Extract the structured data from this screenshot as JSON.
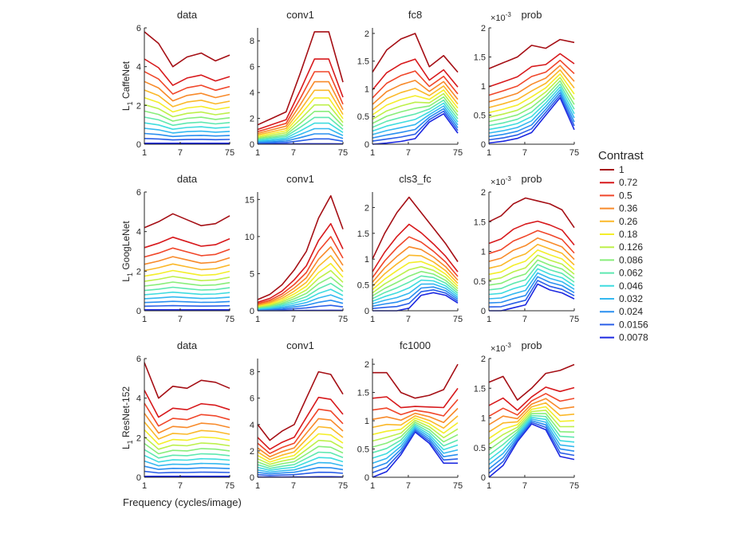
{
  "figure": {
    "xlabel": "Frequency (cycles/image)",
    "legend_title": "Contrast",
    "row_labels": [
      "CaffeNet",
      "GoogLeNet",
      "ResNet-152"
    ],
    "row_label_prefix": "L",
    "row_label_sub": "1",
    "exponent_label": "×10",
    "exponent_value": "-3",
    "x_tick_labels": [
      "1",
      "7",
      "75"
    ]
  },
  "colors": [
    "#a50f15",
    "#d7191c",
    "#f0462a",
    "#f88a2a",
    "#fbb829",
    "#f4ee2a",
    "#bdf04a",
    "#88ee7a",
    "#5ee8b0",
    "#3fdcdf",
    "#34b8f0",
    "#2a8ff0",
    "#2a5fe8",
    "#1c28e0"
  ],
  "chart_data": {
    "type": "line",
    "x": [
      1,
      2,
      3,
      5,
      7,
      10,
      15,
      25,
      40,
      75
    ],
    "legend": [
      "1",
      "0.72",
      "0.5",
      "0.36",
      "0.26",
      "0.18",
      "0.126",
      "0.086",
      "0.062",
      "0.046",
      "0.032",
      "0.024",
      "0.0156",
      "0.0078"
    ],
    "panels": [
      {
        "row": 0,
        "col": 0,
        "title": "data",
        "ylim": [
          0,
          6
        ],
        "yticks": [
          0,
          2,
          4,
          6
        ],
        "first": [
          5.8,
          5.2,
          4.0,
          4.5,
          4.7,
          4.3,
          4.6
        ],
        "last": [
          0.05,
          0.05,
          0.05,
          0.05,
          0.05,
          0.05,
          0.05
        ],
        "lowIsRed": false
      },
      {
        "row": 0,
        "col": 1,
        "title": "conv1",
        "ylim": [
          0,
          9
        ],
        "yticks": [
          0,
          2,
          4,
          6,
          8
        ],
        "first": [
          1.5,
          2.0,
          2.5,
          5.5,
          8.7,
          8.7,
          4.8
        ],
        "last": [
          0.02,
          0.02,
          0.03,
          0.03,
          0.04,
          0.04,
          0.03
        ],
        "lowIsRed": false
      },
      {
        "row": 0,
        "col": 2,
        "title": "fc8",
        "ylim": [
          0,
          2.1
        ],
        "yticks": [
          0,
          0.5,
          1,
          1.5,
          2
        ],
        "first": [
          1.3,
          1.7,
          1.9,
          2.0,
          1.4,
          1.6,
          1.3
        ],
        "last": [
          0.0,
          0.02,
          0.05,
          0.1,
          0.4,
          0.55,
          0.2
        ],
        "lowIsRed": false
      },
      {
        "row": 0,
        "col": 3,
        "title": "prob",
        "ylim": [
          0,
          2
        ],
        "yticks": [
          0,
          0.5,
          1,
          1.5,
          2
        ],
        "first": [
          1.3,
          1.4,
          1.5,
          1.7,
          1.65,
          1.8,
          1.75
        ],
        "last": [
          0.02,
          0.05,
          0.1,
          0.2,
          0.5,
          0.8,
          0.25
        ],
        "exp": true,
        "lowIsRed": false
      },
      {
        "row": 1,
        "col": 0,
        "title": "data",
        "ylim": [
          0,
          6
        ],
        "yticks": [
          0,
          2,
          4,
          6
        ],
        "first": [
          4.2,
          4.5,
          4.9,
          4.6,
          4.3,
          4.4,
          4.8
        ],
        "last": [
          0.05,
          0.05,
          0.05,
          0.05,
          0.05,
          0.05,
          0.05
        ],
        "lowIsRed": false
      },
      {
        "row": 1,
        "col": 1,
        "title": "conv1",
        "ylim": [
          0,
          16
        ],
        "yticks": [
          0,
          5,
          10,
          15
        ],
        "first": [
          1.5,
          2.2,
          3.5,
          5.5,
          8.0,
          12.5,
          15.5,
          11.0
        ],
        "last": [
          0.02,
          0.02,
          0.02,
          0.03,
          0.04,
          0.05,
          0.06,
          0.04
        ],
        "lowIsRed": false
      },
      {
        "row": 1,
        "col": 2,
        "title": "cls3_fc",
        "ylim": [
          0,
          2.3
        ],
        "yticks": [
          0,
          0.5,
          1,
          1.5,
          2
        ],
        "first": [
          1.0,
          1.5,
          1.9,
          2.2,
          1.9,
          1.6,
          1.3,
          0.95
        ],
        "last": [
          0.0,
          0.0,
          0.0,
          0.05,
          0.3,
          0.35,
          0.3,
          0.15
        ],
        "lowIsRed": false
      },
      {
        "row": 1,
        "col": 3,
        "title": "prob",
        "ylim": [
          0,
          2
        ],
        "yticks": [
          0,
          0.5,
          1,
          1.5,
          2
        ],
        "first": [
          1.5,
          1.6,
          1.8,
          1.9,
          1.85,
          1.8,
          1.7,
          1.4
        ],
        "last": [
          0.0,
          0.0,
          0.05,
          0.1,
          0.45,
          0.35,
          0.3,
          0.2
        ],
        "exp": true,
        "lowIsRed": false
      },
      {
        "row": 2,
        "col": 0,
        "title": "data",
        "ylim": [
          0,
          6
        ],
        "yticks": [
          0,
          2,
          4,
          6
        ],
        "first": [
          5.8,
          4.0,
          4.6,
          4.5,
          4.9,
          4.8,
          4.5
        ],
        "last": [
          0.05,
          0.05,
          0.05,
          0.05,
          0.05,
          0.05,
          0.05
        ],
        "lowIsRed": false
      },
      {
        "row": 2,
        "col": 1,
        "title": "conv1",
        "ylim": [
          0,
          9
        ],
        "yticks": [
          0,
          2,
          4,
          6,
          8
        ],
        "first": [
          4.0,
          2.8,
          3.5,
          4.0,
          6.0,
          8.0,
          7.8,
          6.3
        ],
        "last": [
          0.02,
          0.02,
          0.02,
          0.03,
          0.03,
          0.04,
          0.04,
          0.03
        ],
        "lowIsRed": false
      },
      {
        "row": 2,
        "col": 2,
        "title": "fc1000",
        "ylim": [
          0,
          2.1
        ],
        "yticks": [
          0,
          0.5,
          1,
          1.5,
          2
        ],
        "first": [
          1.85,
          1.85,
          1.5,
          1.4,
          1.45,
          1.55,
          2.0
        ],
        "last": [
          0.0,
          0.1,
          0.4,
          0.8,
          0.6,
          0.25,
          0.25
        ],
        "lowIsRed": false
      },
      {
        "row": 2,
        "col": 3,
        "title": "prob",
        "ylim": [
          0,
          2
        ],
        "yticks": [
          0,
          0.5,
          1,
          1.5,
          2
        ],
        "first": [
          1.6,
          1.7,
          1.3,
          1.5,
          1.75,
          1.8,
          1.9
        ],
        "last": [
          0.0,
          0.2,
          0.6,
          0.9,
          0.8,
          0.35,
          0.3
        ],
        "exp": true,
        "lowIsRed": false
      }
    ]
  }
}
